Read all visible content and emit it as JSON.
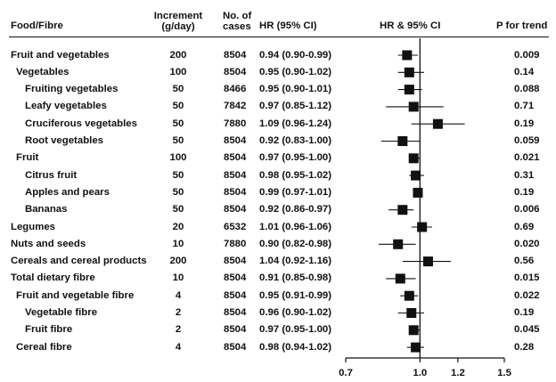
{
  "headers": {
    "food": "Food/Fibre",
    "increment_line1": "Increment",
    "increment_line2": "(g/day)",
    "cases_line1": "No. of",
    "cases_line2": "cases",
    "hr": "HR (95% CI)",
    "plot": "HR & 95% CI",
    "p": "P for trend"
  },
  "rows": [
    {
      "label": "Fruit and vegetables",
      "indent": 0,
      "increment": "200",
      "cases": "8504",
      "hr_text": "0.94 (0.90-0.99)",
      "p": "0.009"
    },
    {
      "label": "Vegetables",
      "indent": 1,
      "increment": "100",
      "cases": "8504",
      "hr_text": "0.95 (0.90-1.02)",
      "p": "0.14"
    },
    {
      "label": "Fruiting vegetables",
      "indent": 2,
      "increment": "50",
      "cases": "8466",
      "hr_text": "0.95 (0.90-1.01)",
      "p": "0.088"
    },
    {
      "label": "Leafy vegetables",
      "indent": 2,
      "increment": "50",
      "cases": "7842",
      "hr_text": "0.97 (0.85-1.12)",
      "p": "0.71"
    },
    {
      "label": "Cruciferous vegetables",
      "indent": 2,
      "increment": "50",
      "cases": "7880",
      "hr_text": "1.09 (0.96-1.24)",
      "p": "0.19"
    },
    {
      "label": "Root vegetables",
      "indent": 2,
      "increment": "50",
      "cases": "8504",
      "hr_text": "0.92 (0.83-1.00)",
      "p": "0.059"
    },
    {
      "label": "Fruit",
      "indent": 1,
      "increment": "100",
      "cases": "8504",
      "hr_text": "0.97 (0.95-1.00)",
      "p": "0.021"
    },
    {
      "label": "Citrus fruit",
      "indent": 2,
      "increment": "50",
      "cases": "8504",
      "hr_text": "0.98 (0.95-1.02)",
      "p": "0.31"
    },
    {
      "label": "Apples and pears",
      "indent": 2,
      "increment": "50",
      "cases": "8504",
      "hr_text": "0.99 (0.97-1.01)",
      "p": "0.19"
    },
    {
      "label": "Bananas",
      "indent": 2,
      "increment": "50",
      "cases": "8504",
      "hr_text": "0.92 (0.86-0.97)",
      "p": "0.006"
    },
    {
      "label": "Legumes",
      "indent": 0,
      "increment": "20",
      "cases": "6532",
      "hr_text": "1.01 (0.96-1.06)",
      "p": "0.69"
    },
    {
      "label": "Nuts and seeds",
      "indent": 0,
      "increment": "10",
      "cases": "7880",
      "hr_text": "0.90 (0.82-0.98)",
      "p": "0.020"
    },
    {
      "label": "Cereals and cereal products",
      "indent": 0,
      "increment": "200",
      "cases": "8504",
      "hr_text": "1.04 (0.92-1.16)",
      "p": "0.56"
    },
    {
      "label": "Total dietary fibre",
      "indent": 0,
      "increment": "10",
      "cases": "8504",
      "hr_text": "0.91 (0.85-0.98)",
      "p": "0.015"
    },
    {
      "label": "Fruit and vegetable fibre",
      "indent": 1,
      "increment": "4",
      "cases": "8504",
      "hr_text": "0.95 (0.91-0.99)",
      "p": "0.022"
    },
    {
      "label": "Vegetable fibre",
      "indent": 2,
      "increment": "2",
      "cases": "8504",
      "hr_text": "0.96 (0.90-1.02)",
      "p": "0.19"
    },
    {
      "label": "Fruit fibre",
      "indent": 2,
      "increment": "2",
      "cases": "8504",
      "hr_text": "0.97 (0.95-1.00)",
      "p": "0.045"
    },
    {
      "label": "Cereal fibre",
      "indent": 1,
      "increment": "4",
      "cases": "8504",
      "hr_text": "0.98 (0.94-1.02)",
      "p": "0.28"
    }
  ],
  "chart_data": {
    "type": "forest",
    "xlim": [
      0.7,
      1.5
    ],
    "xscale": "log",
    "reference_line": 1.0,
    "xticks": [
      0.7,
      1.0,
      1.2,
      1.5
    ],
    "xtick_labels": [
      "0.7",
      "1.0",
      "1.2",
      "1.5"
    ],
    "categories": [
      "Fruit and vegetables",
      "Vegetables",
      "Fruiting vegetables",
      "Leafy vegetables",
      "Cruciferous vegetables",
      "Root vegetables",
      "Fruit",
      "Citrus fruit",
      "Apples and pears",
      "Bananas",
      "Legumes",
      "Nuts and seeds",
      "Cereals and cereal products",
      "Total dietary fibre",
      "Fruit and vegetable fibre",
      "Vegetable fibre",
      "Fruit fibre",
      "Cereal fibre"
    ],
    "hr": [
      0.94,
      0.95,
      0.95,
      0.97,
      1.09,
      0.92,
      0.97,
      0.98,
      0.99,
      0.92,
      1.01,
      0.9,
      1.04,
      0.91,
      0.95,
      0.96,
      0.97,
      0.98
    ],
    "lower": [
      0.9,
      0.9,
      0.9,
      0.85,
      0.96,
      0.83,
      0.95,
      0.95,
      0.97,
      0.86,
      0.96,
      0.82,
      0.92,
      0.85,
      0.91,
      0.9,
      0.95,
      0.94
    ],
    "upper": [
      0.99,
      1.02,
      1.01,
      1.12,
      1.24,
      1.0,
      1.0,
      1.02,
      1.01,
      0.97,
      1.06,
      0.98,
      1.16,
      0.98,
      0.99,
      1.02,
      1.0,
      1.02
    ],
    "xlabel": "",
    "ylabel": "",
    "title": "",
    "grid": false
  }
}
